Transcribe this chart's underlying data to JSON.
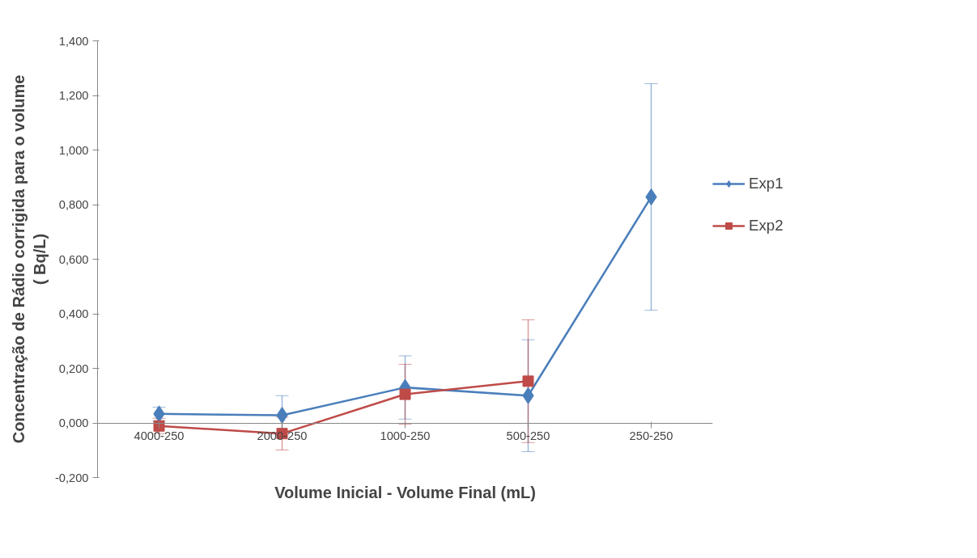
{
  "chart_data": {
    "type": "line",
    "xlabel": "Volume Inicial - Volume Final (mL)",
    "ylabel": "Concentração de Rádio corrigida para o volume\n( Bq/L)",
    "categories": [
      "4000-250",
      "2000-250",
      "1000-250",
      "500-250",
      "250-250"
    ],
    "series": [
      {
        "name": "Exp1",
        "color": "#4a7ebb",
        "marker": "diamond",
        "values": [
          0.033,
          0.028,
          0.13,
          0.1,
          0.828
        ],
        "errors": [
          0.025,
          0.072,
          0.116,
          0.205,
          0.415
        ]
      },
      {
        "name": "Exp2",
        "color": "#be4b48",
        "marker": "square",
        "values": [
          -0.011,
          -0.039,
          0.105,
          0.153,
          null
        ],
        "errors": [
          0.028,
          0.06,
          0.11,
          0.225,
          null
        ]
      }
    ],
    "ylim": [
      -0.2,
      1.4
    ],
    "yticks": [
      {
        "value": -0.2,
        "label": "-0,200"
      },
      {
        "value": 0,
        "label": "0,000"
      },
      {
        "value": 0.2,
        "label": "0,200"
      },
      {
        "value": 0.4,
        "label": "0,400"
      },
      {
        "value": 0.6,
        "label": "0,600"
      },
      {
        "value": 0.8,
        "label": "0,800"
      },
      {
        "value": 1.0,
        "label": "1,000"
      },
      {
        "value": 1.2,
        "label": "1,200"
      },
      {
        "value": 1.4,
        "label": "1,400"
      }
    ],
    "grid": false,
    "legend": "right",
    "line_style": "solid"
  }
}
